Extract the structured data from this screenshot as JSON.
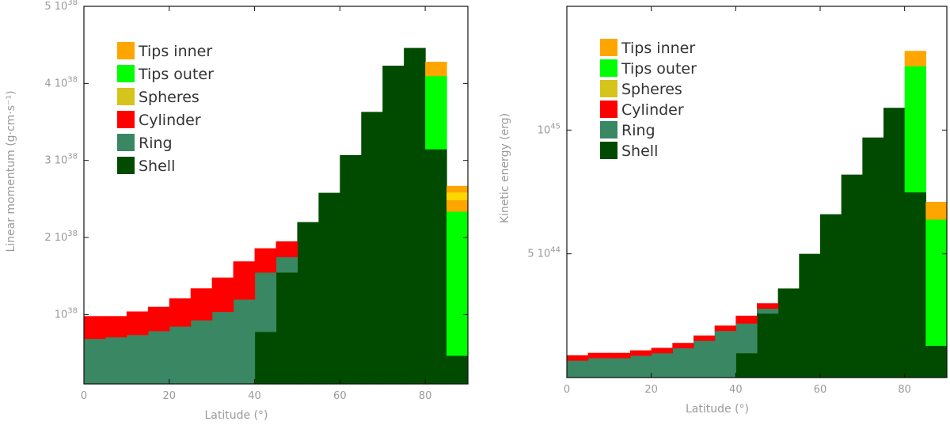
{
  "chart_data": [
    {
      "type": "bar",
      "stacked": true,
      "xlabel": "Latitude (°)",
      "ylabel": "Linear momentum (g·cm·s⁻¹)",
      "xlim": [
        0,
        90
      ],
      "ylim": [
        0.1,
        5.0
      ],
      "y_unit_exponent": "38",
      "x_ticks": [
        0,
        20,
        40,
        60,
        80
      ],
      "x_tick_labels": [
        "0",
        "20",
        "40",
        "60",
        "80"
      ],
      "y_ticks": [
        {
          "value": 1,
          "mantissa": "",
          "base": "10",
          "exp": "38"
        },
        {
          "value": 2,
          "mantissa": "2",
          "base": "10",
          "exp": "38"
        },
        {
          "value": 3,
          "mantissa": "3",
          "base": "10",
          "exp": "38"
        },
        {
          "value": 4,
          "mantissa": "4",
          "base": "10",
          "exp": "38"
        },
        {
          "value": 5,
          "mantissa": "5",
          "base": "10",
          "exp": "38"
        }
      ],
      "legend_position": "top-left",
      "bin_edges": [
        0,
        5,
        10,
        15,
        20,
        25,
        30,
        35,
        40,
        45,
        50,
        55,
        60,
        65,
        70,
        75,
        80,
        85,
        90
      ],
      "series": [
        {
          "name": "Shell",
          "color": "#004b00",
          "values": [
            0,
            0,
            0,
            0,
            0,
            0,
            0,
            0,
            0.78,
            1.55,
            2.2,
            2.58,
            3.07,
            3.63,
            4.23,
            4.46,
            3.15,
            0.47
          ]
        },
        {
          "name": "Ring",
          "color": "#3a8763",
          "values": [
            0.69,
            0.71,
            0.74,
            0.79,
            0.85,
            0.93,
            1.04,
            1.2,
            0.77,
            0.2,
            0,
            0,
            0,
            0,
            0,
            0,
            0,
            0
          ]
        },
        {
          "name": "Cylinder",
          "color": "#ff0000",
          "values": [
            0.29,
            0.27,
            0.3,
            0.31,
            0.36,
            0.41,
            0.44,
            0.49,
            0.31,
            0.2,
            0,
            0,
            0,
            0,
            0,
            0,
            0,
            0
          ]
        },
        {
          "name": "Spheres",
          "color": "#d6c31c",
          "values": [
            0,
            0,
            0,
            0,
            0,
            0,
            0,
            0,
            0,
            0,
            0,
            0,
            0,
            0,
            0,
            0,
            0,
            0
          ]
        },
        {
          "name": "Tips outer",
          "color": "#00ff00",
          "values": [
            0,
            0,
            0,
            0,
            0,
            0,
            0,
            0,
            0,
            0,
            0,
            0,
            0,
            0,
            0,
            0,
            0.95,
            1.87
          ]
        },
        {
          "name": "Tips inner",
          "color": "#ffa500",
          "values": [
            0,
            0,
            0,
            0,
            0,
            0,
            0,
            0,
            0,
            0,
            0,
            0,
            0,
            0,
            0,
            0,
            0.18,
            0.15
          ]
        }
      ],
      "extra_layers": [
        {
          "name": "Spheres top band",
          "color": "#ffd700",
          "values": [
            0,
            0,
            0,
            0,
            0,
            0,
            0,
            0,
            0,
            0,
            0,
            0,
            0,
            0,
            0,
            0,
            0,
            0.1
          ]
        },
        {
          "name": "Tips inner top band",
          "color": "#ffa500",
          "values": [
            0,
            0,
            0,
            0,
            0,
            0,
            0,
            0,
            0,
            0,
            0,
            0,
            0,
            0,
            0,
            0,
            0,
            0.08
          ]
        }
      ],
      "legend": [
        {
          "label": "Tips inner",
          "color": "#ffa500"
        },
        {
          "label": "Tips outer",
          "color": "#00ff00"
        },
        {
          "label": "Spheres",
          "color": "#d6c31c"
        },
        {
          "label": "Cylinder",
          "color": "#ff0000"
        },
        {
          "label": "Ring",
          "color": "#3a8763"
        },
        {
          "label": "Shell",
          "color": "#004b00"
        }
      ]
    },
    {
      "type": "bar",
      "stacked": true,
      "xlabel": "Latitude (°)",
      "ylabel": "Kinetic energy (erg)",
      "xlim": [
        0,
        90
      ],
      "ylim": [
        0.0,
        1.5
      ],
      "y_unit_exponent": "45",
      "x_ticks": [
        0,
        20,
        40,
        60,
        80
      ],
      "x_tick_labels": [
        "0",
        "20",
        "40",
        "60",
        "80"
      ],
      "y_ticks": [
        {
          "value": 0.5,
          "mantissa": "5",
          "base": "10",
          "exp": "44"
        },
        {
          "value": 1.0,
          "mantissa": "",
          "base": "10",
          "exp": "45"
        }
      ],
      "legend_position": "top-left",
      "bin_edges": [
        0,
        5,
        10,
        15,
        20,
        25,
        30,
        35,
        40,
        45,
        50,
        55,
        60,
        65,
        70,
        75,
        80,
        85,
        90
      ],
      "series": [
        {
          "name": "Shell",
          "color": "#004b00",
          "values": [
            0,
            0,
            0,
            0,
            0,
            0,
            0,
            0,
            0.1,
            0.26,
            0.36,
            0.5,
            0.66,
            0.82,
            0.97,
            1.09,
            0.75,
            0.13
          ]
        },
        {
          "name": "Ring",
          "color": "#3a8763",
          "values": [
            0.07,
            0.08,
            0.08,
            0.09,
            0.1,
            0.12,
            0.15,
            0.19,
            0.12,
            0.02,
            0,
            0,
            0,
            0,
            0,
            0,
            0,
            0
          ]
        },
        {
          "name": "Cylinder",
          "color": "#ff0000",
          "values": [
            0.02,
            0.02,
            0.02,
            0.02,
            0.02,
            0.02,
            0.02,
            0.02,
            0.03,
            0.02,
            0,
            0,
            0,
            0,
            0,
            0,
            0,
            0
          ]
        },
        {
          "name": "Spheres",
          "color": "#d6c31c",
          "values": [
            0,
            0,
            0,
            0,
            0,
            0,
            0,
            0,
            0,
            0,
            0,
            0,
            0,
            0,
            0,
            0,
            0,
            0
          ]
        },
        {
          "name": "Tips outer",
          "color": "#00ff00",
          "values": [
            0,
            0,
            0,
            0,
            0,
            0,
            0,
            0,
            0,
            0,
            0,
            0,
            0,
            0,
            0,
            0,
            0.51,
            0.51
          ]
        },
        {
          "name": "Tips inner",
          "color": "#ffa500",
          "values": [
            0,
            0,
            0,
            0,
            0,
            0,
            0,
            0,
            0,
            0,
            0,
            0,
            0,
            0,
            0,
            0,
            0.06,
            0.04
          ]
        }
      ],
      "extra_layers": [
        {
          "name": "Tips inner top band",
          "color": "#ffa500",
          "values": [
            0,
            0,
            0,
            0,
            0,
            0,
            0,
            0,
            0,
            0,
            0,
            0,
            0,
            0,
            0,
            0,
            0,
            0.03
          ]
        }
      ],
      "legend": [
        {
          "label": "Tips inner",
          "color": "#ffa500"
        },
        {
          "label": "Tips outer",
          "color": "#00ff00"
        },
        {
          "label": "Spheres",
          "color": "#d6c31c"
        },
        {
          "label": "Cylinder",
          "color": "#ff0000"
        },
        {
          "label": "Ring",
          "color": "#3a8763"
        },
        {
          "label": "Shell",
          "color": "#004b00"
        }
      ]
    }
  ]
}
